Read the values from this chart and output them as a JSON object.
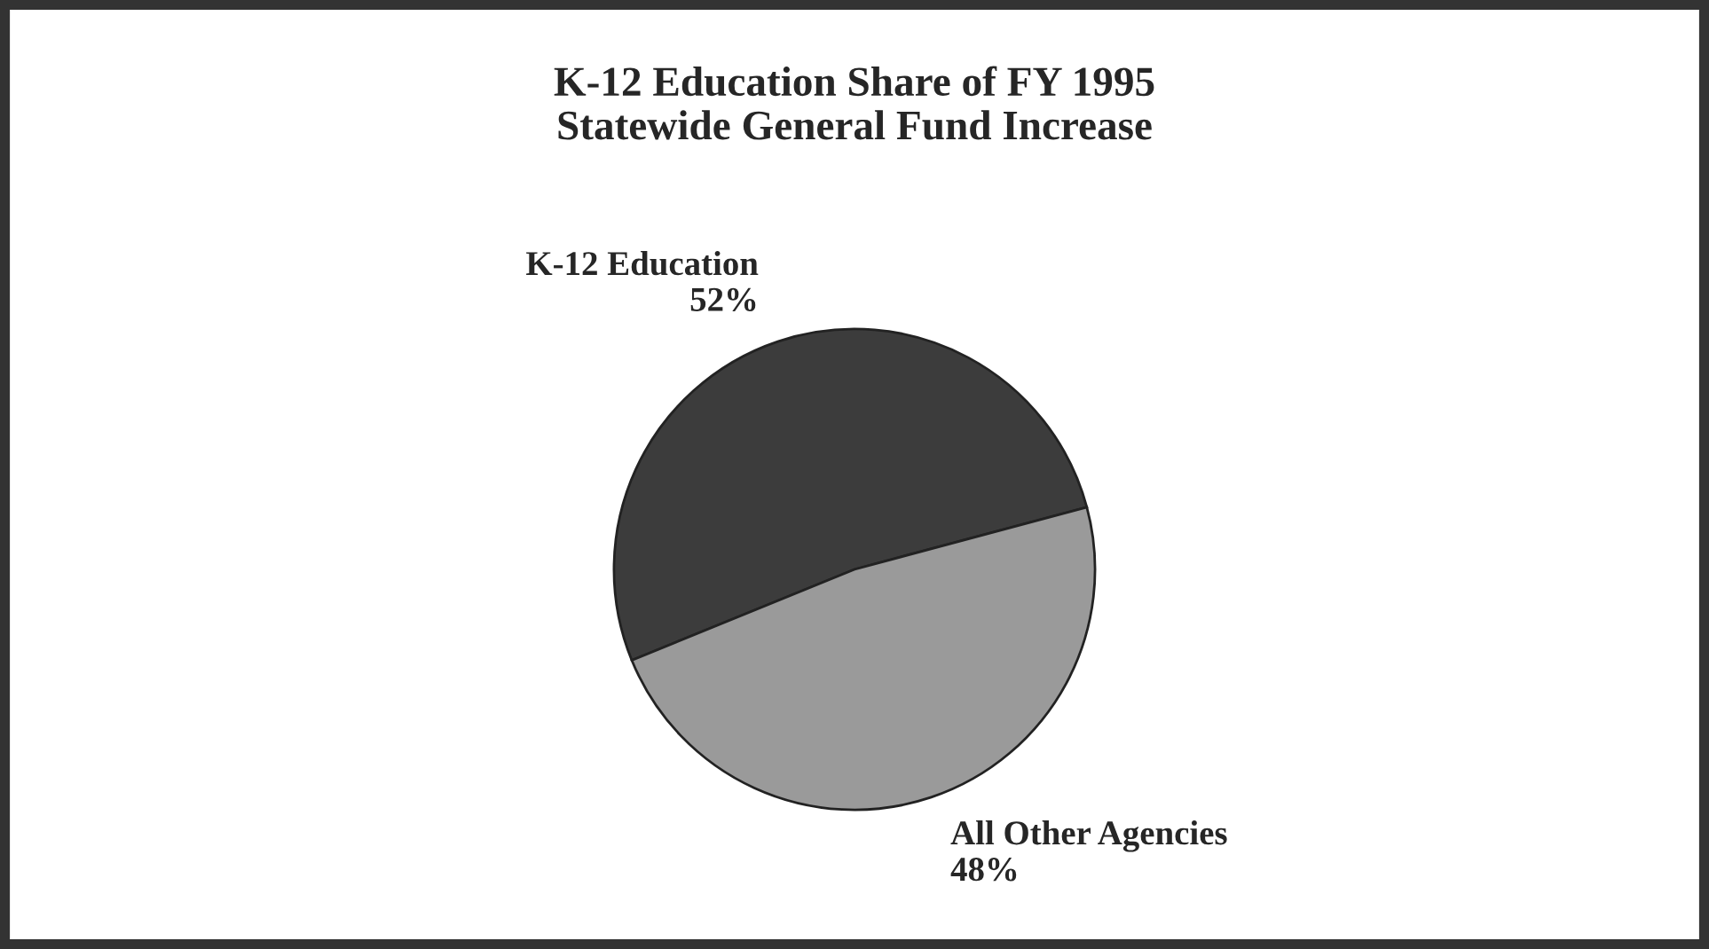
{
  "chart_data": {
    "type": "pie",
    "title": "K-12 Education Share of FY 1995\nStatewide General Fund Increase",
    "categories": [
      "K-12 Education",
      "All Other Agencies"
    ],
    "values": [
      52,
      48
    ],
    "value_labels": [
      "52%",
      "48%"
    ],
    "colors": [
      "#3c3c3c",
      "#9a9a9a"
    ],
    "legend": false
  }
}
